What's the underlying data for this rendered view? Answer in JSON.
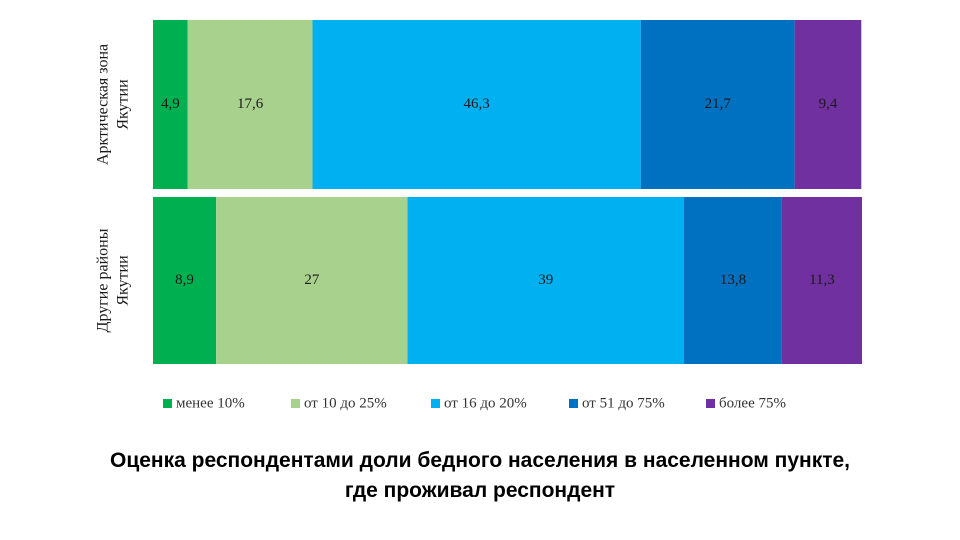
{
  "chart_data": {
    "type": "bar",
    "orientation": "horizontal",
    "stacked": true,
    "categories": [
      [
        "Арктическая зона",
        "Якутии"
      ],
      [
        "Другие районы",
        "Якутии"
      ]
    ],
    "series": [
      {
        "name": "менее 10%",
        "color": "#00b050",
        "values": [
          4.9,
          8.9
        ],
        "labels": [
          "4,9",
          "8,9"
        ]
      },
      {
        "name": "от 10 до 25%",
        "color": "#a9d18e",
        "values": [
          17.6,
          27
        ],
        "labels": [
          "17,6",
          "27"
        ]
      },
      {
        "name": "от 16 до 20%",
        "color": "#00b0f0",
        "values": [
          46.3,
          39
        ],
        "labels": [
          "46,3",
          "39"
        ]
      },
      {
        "name": "от 51 до 75%",
        "color": "#0070c0",
        "values": [
          21.7,
          13.8
        ],
        "labels": [
          "21,7",
          "13,8"
        ]
      },
      {
        "name": "более 75%",
        "color": "#7030a0",
        "values": [
          9.4,
          11.3
        ],
        "labels": [
          "9,4",
          "11,3"
        ]
      }
    ],
    "legend": "bottom",
    "grid": false
  },
  "caption": {
    "line1": "Оценка респондентами доли бедного населения в населенном пункте,",
    "line2": "где проживал респондент"
  }
}
